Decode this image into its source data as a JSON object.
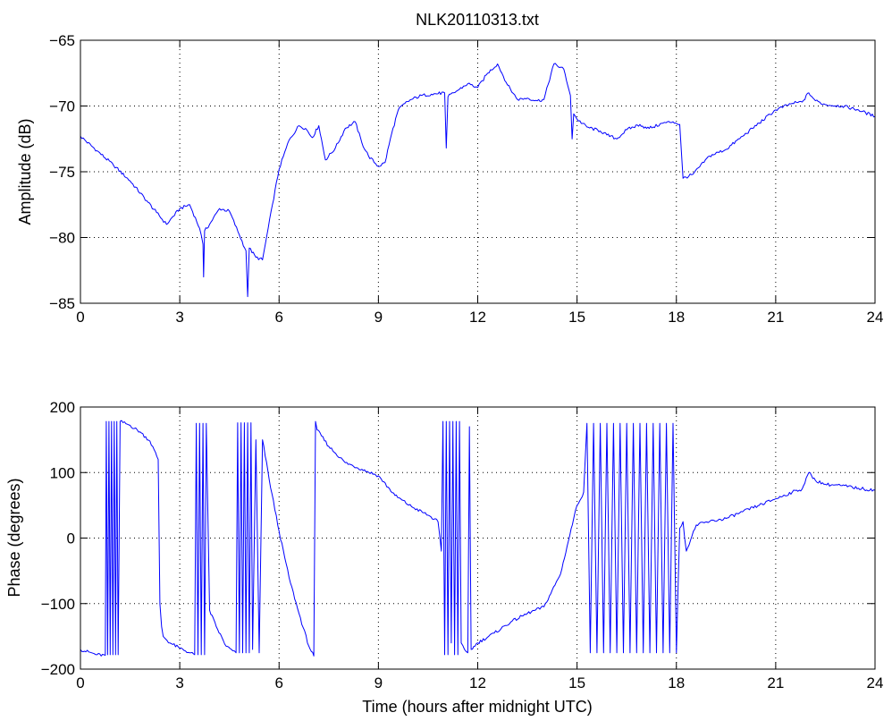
{
  "chart_data": [
    {
      "type": "line",
      "title": "NLK20110313.txt",
      "xlabel": "",
      "ylabel": "Amplitude (dB)",
      "xlim": [
        0,
        24
      ],
      "ylim": [
        -85,
        -65
      ],
      "xticks": [
        0,
        3,
        6,
        9,
        12,
        15,
        18,
        21,
        24
      ],
      "yticks": [
        -85,
        -80,
        -75,
        -70,
        -65
      ],
      "grid": true,
      "series": [
        {
          "color": "#0000ff",
          "x": [
            0,
            0.5,
            1.0,
            1.5,
            2.0,
            2.3,
            2.6,
            3.0,
            3.3,
            3.6,
            3.7,
            3.72,
            3.75,
            3.9,
            4.2,
            4.5,
            4.8,
            5.0,
            5.05,
            5.1,
            5.3,
            5.5,
            5.8,
            6.0,
            6.3,
            6.6,
            6.8,
            7.0,
            7.2,
            7.4,
            7.7,
            8.0,
            8.3,
            8.5,
            8.7,
            9.0,
            9.2,
            9.4,
            9.6,
            9.8,
            10.0,
            10.3,
            10.6,
            11.0,
            11.05,
            11.1,
            11.4,
            11.7,
            12.0,
            12.3,
            12.6,
            12.9,
            13.2,
            13.5,
            13.8,
            14.0,
            14.3,
            14.6,
            14.8,
            14.85,
            14.9,
            15.0,
            15.3,
            15.7,
            15.9,
            16.2,
            16.5,
            16.9,
            17.1,
            17.3,
            17.6,
            17.9,
            18.1,
            18.2,
            18.5,
            19.0,
            19.5,
            20.0,
            20.5,
            21.0,
            21.5,
            21.8,
            22.0,
            22.2,
            22.5,
            23.0,
            23.5,
            24.0
          ],
          "y": [
            -72.3,
            -73.4,
            -74.5,
            -75.7,
            -77.2,
            -78.1,
            -79.0,
            -77.8,
            -77.5,
            -79.3,
            -80.5,
            -83.0,
            -79.5,
            -79.0,
            -77.8,
            -78.0,
            -79.8,
            -81.0,
            -84.5,
            -80.8,
            -81.5,
            -81.7,
            -77.5,
            -74.8,
            -72.6,
            -71.5,
            -71.7,
            -72.4,
            -71.5,
            -74.1,
            -73.2,
            -71.7,
            -71.2,
            -72.8,
            -73.8,
            -74.6,
            -74.3,
            -72.1,
            -70.3,
            -69.8,
            -69.5,
            -69.2,
            -69.1,
            -69.0,
            -73.2,
            -69.3,
            -68.8,
            -68.3,
            -68.6,
            -67.5,
            -66.8,
            -68.4,
            -69.5,
            -69.4,
            -69.6,
            -69.5,
            -66.8,
            -67.2,
            -69.2,
            -72.5,
            -70.6,
            -71.0,
            -71.6,
            -71.9,
            -72.2,
            -72.5,
            -71.8,
            -71.4,
            -71.7,
            -71.6,
            -71.3,
            -71.2,
            -71.4,
            -75.5,
            -75.2,
            -73.8,
            -73.3,
            -72.3,
            -71.3,
            -70.3,
            -69.8,
            -69.7,
            -69.0,
            -69.6,
            -69.9,
            -70.0,
            -70.3,
            -70.8
          ]
        }
      ]
    },
    {
      "type": "line",
      "title": "",
      "xlabel": "Time (hours after midnight UTC)",
      "ylabel": "Phase (degrees)",
      "xlim": [
        0,
        24
      ],
      "ylim": [
        -200,
        200
      ],
      "xticks": [
        0,
        3,
        6,
        9,
        12,
        15,
        18,
        21,
        24
      ],
      "yticks": [
        -200,
        -100,
        0,
        100,
        200
      ],
      "grid": true,
      "series": [
        {
          "color": "#0000ff",
          "x": [
            0,
            0.5,
            0.75,
            0.78,
            0.82,
            0.86,
            0.9,
            0.94,
            0.98,
            1.02,
            1.06,
            1.1,
            1.14,
            1.2,
            1.5,
            1.8,
            2.1,
            2.35,
            2.4,
            2.45,
            2.5,
            2.7,
            3.0,
            3.3,
            3.45,
            3.5,
            3.55,
            3.6,
            3.65,
            3.7,
            3.75,
            3.8,
            3.9,
            4.1,
            4.4,
            4.6,
            4.7,
            4.75,
            4.8,
            4.85,
            4.9,
            4.95,
            5.0,
            5.05,
            5.1,
            5.15,
            5.2,
            5.3,
            5.4,
            5.5,
            5.7,
            6.0,
            6.3,
            6.6,
            6.9,
            7.05,
            7.1,
            7.15,
            7.5,
            8.0,
            8.5,
            9.0,
            9.5,
            10.0,
            10.5,
            10.8,
            10.9,
            10.95,
            11.0,
            11.05,
            11.1,
            11.15,
            11.2,
            11.25,
            11.3,
            11.35,
            11.4,
            11.45,
            11.5,
            11.6,
            11.7,
            11.75,
            11.8,
            12.0,
            12.5,
            13.0,
            13.5,
            14.0,
            14.5,
            14.9,
            15.0,
            15.2,
            15.3,
            15.4,
            15.5,
            15.6,
            15.7,
            15.8,
            15.9,
            16.0,
            16.1,
            16.2,
            16.3,
            16.4,
            16.5,
            16.6,
            16.7,
            16.8,
            16.9,
            17.0,
            17.1,
            17.2,
            17.3,
            17.4,
            17.5,
            17.6,
            17.7,
            17.8,
            17.9,
            18.0,
            18.1,
            18.2,
            18.3,
            18.6,
            19.0,
            19.5,
            20.0,
            20.5,
            21.0,
            21.5,
            21.8,
            22.0,
            22.2,
            22.5,
            23.0,
            23.5,
            24.0
          ],
          "y": [
            -170,
            -178,
            -179,
            178,
            -178,
            178,
            -178,
            178,
            -178,
            178,
            -178,
            178,
            -178,
            178,
            172,
            162,
            148,
            120,
            -100,
            -135,
            -150,
            -160,
            -168,
            -175,
            -178,
            175,
            -178,
            175,
            -178,
            175,
            -178,
            175,
            -110,
            -135,
            -165,
            -172,
            -175,
            176,
            -175,
            176,
            -175,
            176,
            -175,
            176,
            -175,
            176,
            -170,
            150,
            -175,
            150,
            90,
            10,
            -60,
            -115,
            -165,
            -180,
            178,
            165,
            140,
            115,
            105,
            95,
            65,
            48,
            35,
            25,
            -20,
            178,
            -178,
            178,
            -178,
            178,
            -160,
            178,
            -178,
            178,
            -178,
            178,
            -160,
            -170,
            -175,
            170,
            -170,
            -160,
            -145,
            -128,
            -115,
            -105,
            -55,
            30,
            50,
            70,
            175,
            -175,
            175,
            -175,
            175,
            -175,
            175,
            -175,
            175,
            -175,
            175,
            -175,
            175,
            -175,
            175,
            -175,
            175,
            -175,
            175,
            -175,
            175,
            -175,
            175,
            -175,
            175,
            -175,
            175,
            -175,
            15,
            25,
            -20,
            20,
            25,
            30,
            40,
            50,
            60,
            70,
            75,
            100,
            88,
            82,
            80,
            76,
            73
          ]
        }
      ]
    }
  ]
}
